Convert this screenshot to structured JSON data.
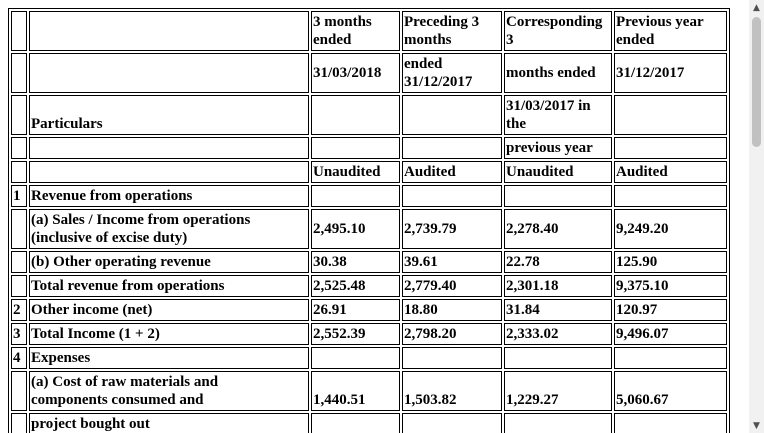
{
  "header": {
    "col1_line1": "3 months",
    "col1_line2": "ended",
    "col2_line1": "Preceding 3",
    "col2_line2": "months",
    "col3_line1": "Corresponding",
    "col3_line2": "3",
    "col4_line1": "Previous year",
    "col4_line2": "ended",
    "col1_date": "31/03/2018",
    "col2_ended": "ended",
    "col2_date": "31/12/2017",
    "col3_months": "months ended",
    "col4_date": "31/12/2017",
    "col3_date_line1": "31/03/2017 in",
    "col3_date_line2": "the",
    "particulars": "Particulars",
    "col3_prev": "previous year",
    "col1_status": "Unaudited",
    "col2_status": "Audited",
    "col3_status": "Unaudited",
    "col4_status": "Audited"
  },
  "rows": [
    {
      "no": "1",
      "label": "Revenue from operations",
      "v1": "",
      "v2": "",
      "v3": "",
      "v4": ""
    },
    {
      "no": "",
      "label_line1": "(a) Sales / Income from operations",
      "label_line2": "(inclusive of excise duty)",
      "v1": "2,495.10",
      "v2": "2,739.79",
      "v3": "2,278.40",
      "v4": "9,249.20"
    },
    {
      "no": "",
      "label": "(b) Other operating revenue",
      "v1": "30.38",
      "v2": "39.61",
      "v3": "22.78",
      "v4": "125.90"
    },
    {
      "no": "",
      "label": "Total revenue from operations",
      "v1": "2,525.48",
      "v2": "2,779.40",
      "v3": "2,301.18",
      "v4": "9,375.10"
    },
    {
      "no": "2",
      "label": "Other income (net)",
      "v1": "26.91",
      "v2": "18.80",
      "v3": "31.84",
      "v4": "120.97"
    },
    {
      "no": "3",
      "label": "Total Income (1 + 2)",
      "v1": "2,552.39",
      "v2": "2,798.20",
      "v3": "2,333.02",
      "v4": "9,496.07"
    },
    {
      "no": "4",
      "label": "Expenses",
      "v1": "",
      "v2": "",
      "v3": "",
      "v4": ""
    },
    {
      "no": "",
      "label_line1": "(a) Cost of raw materials and",
      "label_line2": "components consumed and",
      "v1": "1,440.51",
      "v2": "1,503.82",
      "v3": "1,229.27",
      "v4": "5,060.67"
    },
    {
      "no": "",
      "label": "project bought out",
      "v1": "",
      "v2": "",
      "v3": "",
      "v4": ""
    }
  ]
}
